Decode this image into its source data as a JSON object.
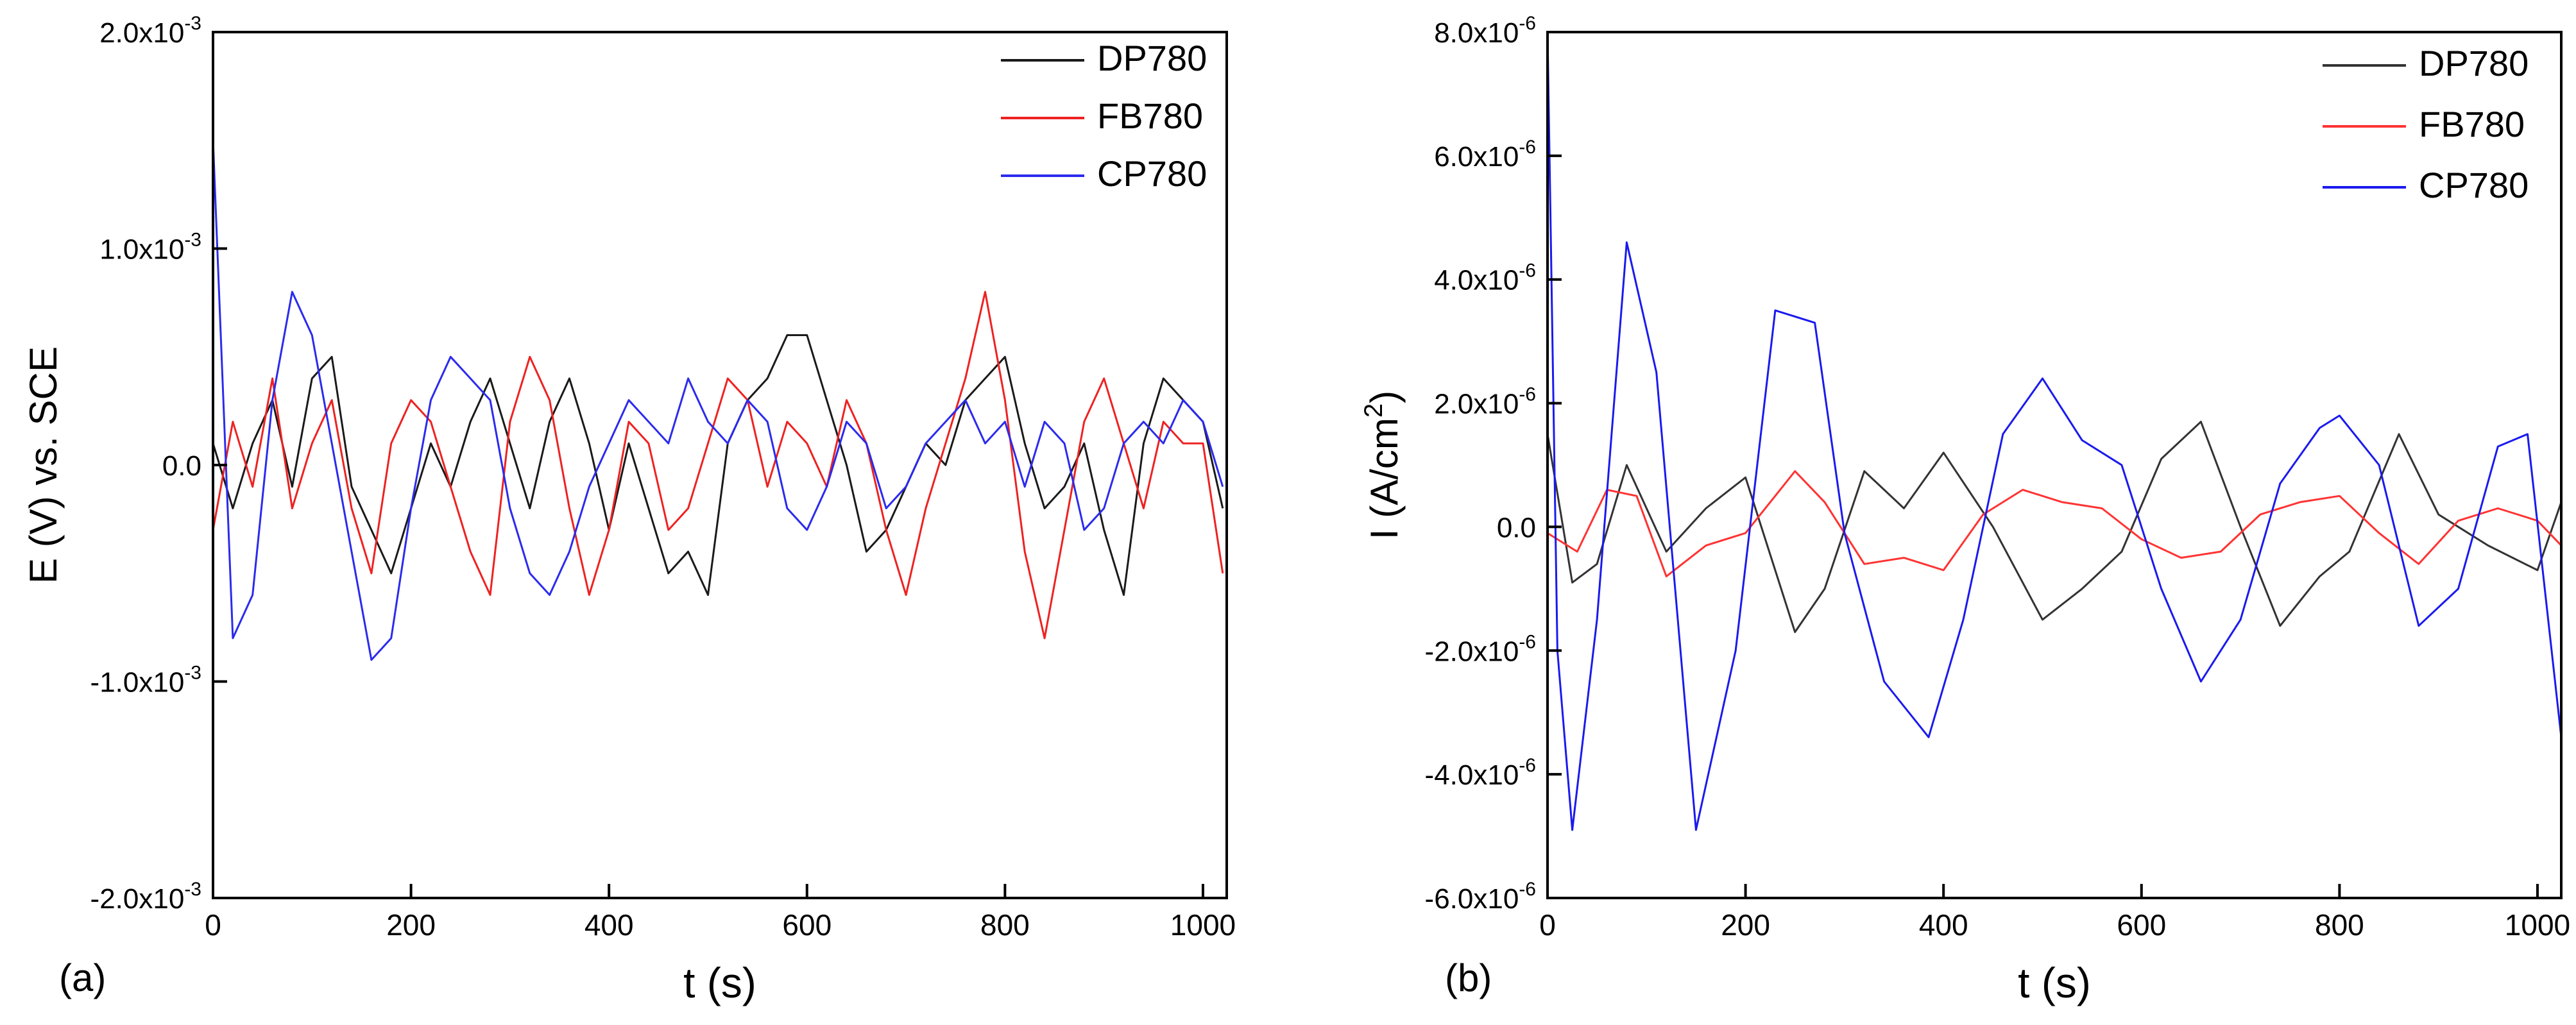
{
  "chart_data": [
    {
      "panel_label": "(a)",
      "type": "line",
      "xlabel": "t (s)",
      "ylabel": "E (V) vs. SCE",
      "xlim": [
        0,
        1024
      ],
      "ylim": [
        -0.002,
        0.002
      ],
      "x_ticks": [
        0,
        200,
        400,
        600,
        800,
        1000
      ],
      "x_tick_labels": [
        "0",
        "200",
        "400",
        "600",
        "800",
        "1000"
      ],
      "y_ticks": [
        -0.002,
        -0.001,
        0.0,
        0.001,
        0.002
      ],
      "y_tick_labels": [
        {
          "mantissa": "-2.0x10",
          "exponent": "-3"
        },
        {
          "mantissa": "-1.0x10",
          "exponent": "-3"
        },
        {
          "mantissa": "0.0",
          "exponent": ""
        },
        {
          "mantissa": "1.0x10",
          "exponent": "-3"
        },
        {
          "mantissa": "2.0x10",
          "exponent": "-3"
        }
      ],
      "legend_position": "top-right",
      "series": [
        {
          "name": "DP780",
          "color": "#1a1a1a",
          "x": [
            0,
            20,
            40,
            60,
            80,
            100,
            120,
            140,
            160,
            180,
            200,
            220,
            240,
            260,
            280,
            300,
            320,
            340,
            360,
            380,
            400,
            420,
            440,
            460,
            480,
            500,
            520,
            540,
            560,
            580,
            600,
            620,
            640,
            660,
            680,
            700,
            720,
            740,
            760,
            780,
            800,
            820,
            840,
            860,
            880,
            900,
            920,
            940,
            960,
            980,
            1000,
            1020
          ],
          "y": [
            0.0001,
            -0.0002,
            0.0001,
            0.0003,
            -0.0001,
            0.0004,
            0.0005,
            -0.0001,
            -0.0003,
            -0.0005,
            -0.0002,
            0.0001,
            -0.0001,
            0.0002,
            0.0004,
            0.0001,
            -0.0002,
            0.0002,
            0.0004,
            0.0001,
            -0.0003,
            0.0001,
            -0.0002,
            -0.0005,
            -0.0004,
            -0.0006,
            0.0001,
            0.0003,
            0.0004,
            0.0006,
            0.0006,
            0.0003,
            0.0,
            -0.0004,
            -0.0003,
            -0.0001,
            0.0001,
            0.0,
            0.0003,
            0.0004,
            0.0005,
            0.0001,
            -0.0002,
            -0.0001,
            0.0001,
            -0.0003,
            -0.0006,
            0.0001,
            0.0004,
            0.0003,
            0.0002,
            -0.0002
          ]
        },
        {
          "name": "FB780",
          "color": "#ee2222",
          "x": [
            0,
            20,
            40,
            60,
            80,
            100,
            120,
            140,
            160,
            180,
            200,
            220,
            240,
            260,
            280,
            300,
            320,
            340,
            360,
            380,
            400,
            420,
            440,
            460,
            480,
            500,
            520,
            540,
            560,
            580,
            600,
            620,
            640,
            660,
            680,
            700,
            720,
            740,
            760,
            780,
            800,
            820,
            840,
            860,
            880,
            900,
            920,
            940,
            960,
            980,
            1000,
            1020
          ],
          "y": [
            -0.0003,
            0.0002,
            -0.0001,
            0.0004,
            -0.0002,
            0.0001,
            0.0003,
            -0.0002,
            -0.0005,
            0.0001,
            0.0003,
            0.0002,
            -0.0001,
            -0.0004,
            -0.0006,
            0.0002,
            0.0005,
            0.0003,
            -0.0002,
            -0.0006,
            -0.0003,
            0.0002,
            0.0001,
            -0.0003,
            -0.0002,
            0.0001,
            0.0004,
            0.0003,
            -0.0001,
            0.0002,
            0.0001,
            -0.0001,
            0.0003,
            0.0001,
            -0.0003,
            -0.0006,
            -0.0002,
            0.0001,
            0.0004,
            0.0008,
            0.0003,
            -0.0004,
            -0.0008,
            -0.0003,
            0.0002,
            0.0004,
            0.0001,
            -0.0002,
            0.0002,
            0.0001,
            0.0001,
            -0.0005
          ]
        },
        {
          "name": "CP780",
          "color": "#2b2bee",
          "x": [
            0,
            20,
            40,
            60,
            80,
            100,
            120,
            140,
            160,
            180,
            200,
            220,
            240,
            260,
            280,
            300,
            320,
            340,
            360,
            380,
            400,
            420,
            440,
            460,
            480,
            500,
            520,
            540,
            560,
            580,
            600,
            620,
            640,
            660,
            680,
            700,
            720,
            740,
            760,
            780,
            800,
            820,
            840,
            860,
            880,
            900,
            920,
            940,
            960,
            980,
            1000,
            1020
          ],
          "y": [
            0.0015,
            -0.0008,
            -0.0006,
            0.0003,
            0.0008,
            0.0006,
            0.0001,
            -0.0004,
            -0.0009,
            -0.0008,
            -0.0002,
            0.0003,
            0.0005,
            0.0004,
            0.0003,
            -0.0002,
            -0.0005,
            -0.0006,
            -0.0004,
            -0.0001,
            0.0001,
            0.0003,
            0.0002,
            0.0001,
            0.0004,
            0.0002,
            0.0001,
            0.0003,
            0.0002,
            -0.0002,
            -0.0003,
            -0.0001,
            0.0002,
            0.0001,
            -0.0002,
            -0.0001,
            0.0001,
            0.0002,
            0.0003,
            0.0001,
            0.0002,
            -0.0001,
            0.0002,
            0.0001,
            -0.0003,
            -0.0002,
            0.0001,
            0.0002,
            0.0001,
            0.0003,
            0.0002,
            -0.0001
          ]
        }
      ]
    },
    {
      "panel_label": "(b)",
      "type": "line",
      "xlabel": "t (s)",
      "ylabel_main": "I (A/cm",
      "ylabel_sup": "2",
      "ylabel_tail": ")",
      "xlim": [
        0,
        1024
      ],
      "ylim": [
        -6e-06,
        8e-06
      ],
      "x_ticks": [
        0,
        200,
        400,
        600,
        800,
        1000
      ],
      "x_tick_labels": [
        "0",
        "200",
        "400",
        "600",
        "800",
        "1000"
      ],
      "y_ticks": [
        -6e-06,
        -4e-06,
        -2e-06,
        0,
        2e-06,
        4e-06,
        6e-06,
        8e-06
      ],
      "y_tick_labels": [
        {
          "mantissa": "-6.0x10",
          "exponent": "-6"
        },
        {
          "mantissa": "-4.0x10",
          "exponent": "-6"
        },
        {
          "mantissa": "-2.0x10",
          "exponent": "-6"
        },
        {
          "mantissa": "0.0",
          "exponent": ""
        },
        {
          "mantissa": "2.0x10",
          "exponent": "-6"
        },
        {
          "mantissa": "4.0x10",
          "exponent": "-6"
        },
        {
          "mantissa": "6.0x10",
          "exponent": "-6"
        },
        {
          "mantissa": "8.0x10",
          "exponent": "-6"
        }
      ],
      "legend_position": "top-right",
      "series": [
        {
          "name": "DP780",
          "color": "#333333",
          "x": [
            0,
            25,
            50,
            80,
            120,
            160,
            200,
            250,
            280,
            320,
            360,
            400,
            450,
            500,
            540,
            580,
            620,
            660,
            700,
            740,
            780,
            810,
            860,
            900,
            950,
            1000,
            1024
          ],
          "y": [
            1.5e-06,
            -9e-07,
            -6e-07,
            1e-06,
            -4e-07,
            3e-07,
            8e-07,
            -1.7e-06,
            -1e-06,
            9e-07,
            3e-07,
            1.2e-06,
            0.0,
            -1.5e-06,
            -1e-06,
            -4e-07,
            1.1e-06,
            1.7e-06,
            0.0,
            -1.6e-06,
            -8e-07,
            -4e-07,
            1.5e-06,
            2e-07,
            -3e-07,
            -7e-07,
            4e-07
          ]
        },
        {
          "name": "FB780",
          "color": "#ff3333",
          "x": [
            0,
            30,
            60,
            90,
            120,
            160,
            200,
            250,
            280,
            320,
            360,
            400,
            440,
            480,
            520,
            560,
            600,
            640,
            680,
            720,
            760,
            800,
            840,
            880,
            920,
            960,
            1000,
            1024
          ],
          "y": [
            -1e-07,
            -4e-07,
            6e-07,
            5e-07,
            -8e-07,
            -3e-07,
            -1e-07,
            9e-07,
            4e-07,
            -6e-07,
            -5e-07,
            -7e-07,
            2e-07,
            6e-07,
            4e-07,
            3e-07,
            -2e-07,
            -5e-07,
            -4e-07,
            2e-07,
            4e-07,
            5e-07,
            -1e-07,
            -6e-07,
            1e-07,
            3e-07,
            1e-07,
            -3e-07
          ]
        },
        {
          "name": "CP780",
          "color": "#1a1aee",
          "x": [
            0,
            10,
            25,
            50,
            80,
            110,
            150,
            190,
            230,
            270,
            300,
            340,
            385,
            420,
            460,
            500,
            540,
            580,
            620,
            660,
            700,
            740,
            780,
            800,
            840,
            880,
            920,
            960,
            990,
            1024
          ],
          "y": [
            8e-06,
            -2e-06,
            -4.9e-06,
            -1.5e-06,
            4.6e-06,
            2.5e-06,
            -4.9e-06,
            -2e-06,
            3.5e-06,
            3.3e-06,
            -1e-07,
            -2.5e-06,
            -3.4e-06,
            -1.5e-06,
            1.5e-06,
            2.4e-06,
            1.4e-06,
            1e-06,
            -1e-06,
            -2.5e-06,
            -1.5e-06,
            7e-07,
            1.6e-06,
            1.8e-06,
            1e-06,
            -1.6e-06,
            -1e-06,
            1.3e-06,
            1.5e-06,
            -3.4e-06
          ]
        }
      ]
    }
  ]
}
